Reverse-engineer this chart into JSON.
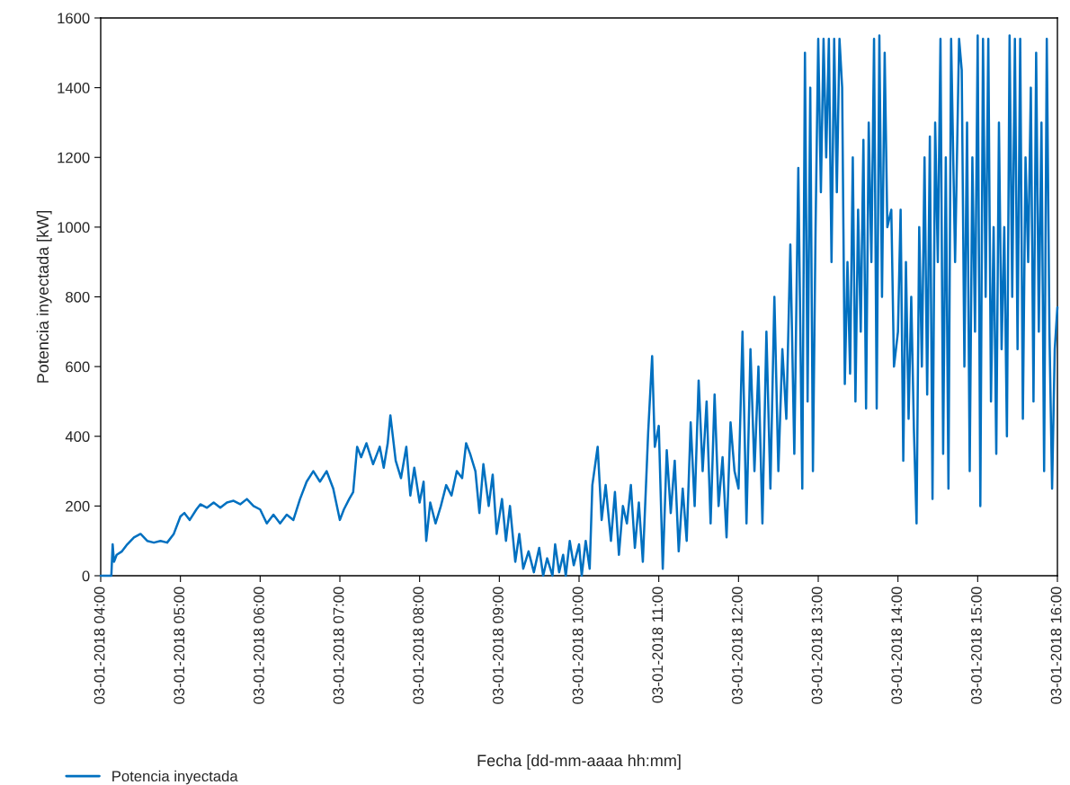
{
  "chart_data": {
    "type": "line",
    "xlabel": "Fecha [dd-mm-aaaa hh:mm]",
    "ylabel": "Potencia inyectada [kW]",
    "ylim": [
      0,
      1600
    ],
    "yticks": [
      0,
      200,
      400,
      600,
      800,
      1000,
      1200,
      1400,
      1600
    ],
    "xlim": [
      "2018-01-03T04:00",
      "2018-01-03T16:00"
    ],
    "xticks": [
      {
        "value": "2018-01-03T04:00",
        "label": "03-01-2018 04:00"
      },
      {
        "value": "2018-01-03T05:00",
        "label": "03-01-2018 05:00"
      },
      {
        "value": "2018-01-03T06:00",
        "label": "03-01-2018 06:00"
      },
      {
        "value": "2018-01-03T07:00",
        "label": "03-01-2018 07:00"
      },
      {
        "value": "2018-01-03T08:00",
        "label": "03-01-2018 08:00"
      },
      {
        "value": "2018-01-03T09:00",
        "label": "03-01-2018 09:00"
      },
      {
        "value": "2018-01-03T10:00",
        "label": "03-01-2018 10:00"
      },
      {
        "value": "2018-01-03T11:00",
        "label": "03-01-2018 11:00"
      },
      {
        "value": "2018-01-03T12:00",
        "label": "03-01-2018 12:00"
      },
      {
        "value": "2018-01-03T13:00",
        "label": "03-01-2018 13:00"
      },
      {
        "value": "2018-01-03T14:00",
        "label": "03-01-2018 14:00"
      },
      {
        "value": "2018-01-03T15:00",
        "label": "03-01-2018 15:00"
      },
      {
        "value": "2018-01-03T16:00",
        "label": "03-01-2018 16:00"
      }
    ],
    "grid": false,
    "legend": "bottom left",
    "marker": "none",
    "line_style": "solid",
    "series": [
      {
        "name": "Potencia inyectada",
        "color": "#0070c0",
        "x": [
          "2018-01-03T04:00",
          "2018-01-03T04:08",
          "2018-01-03T04:09",
          "2018-01-03T04:10",
          "2018-01-03T04:12",
          "2018-01-03T04:16",
          "2018-01-03T04:20",
          "2018-01-03T04:25",
          "2018-01-03T04:30",
          "2018-01-03T04:35",
          "2018-01-03T04:40",
          "2018-01-03T04:45",
          "2018-01-03T04:50",
          "2018-01-03T04:55",
          "2018-01-03T05:00",
          "2018-01-03T05:03",
          "2018-01-03T05:07",
          "2018-01-03T05:12",
          "2018-01-03T05:15",
          "2018-01-03T05:20",
          "2018-01-03T05:25",
          "2018-01-03T05:30",
          "2018-01-03T05:35",
          "2018-01-03T05:40",
          "2018-01-03T05:45",
          "2018-01-03T05:50",
          "2018-01-03T05:55",
          "2018-01-03T06:00",
          "2018-01-03T06:05",
          "2018-01-03T06:10",
          "2018-01-03T06:15",
          "2018-01-03T06:20",
          "2018-01-03T06:25",
          "2018-01-03T06:30",
          "2018-01-03T06:35",
          "2018-01-03T06:40",
          "2018-01-03T06:45",
          "2018-01-03T06:50",
          "2018-01-03T06:55",
          "2018-01-03T07:00",
          "2018-01-03T07:03",
          "2018-01-03T07:07",
          "2018-01-03T07:10",
          "2018-01-03T07:13",
          "2018-01-03T07:16",
          "2018-01-03T07:20",
          "2018-01-03T07:25",
          "2018-01-03T07:30",
          "2018-01-03T07:33",
          "2018-01-03T07:36",
          "2018-01-03T07:38",
          "2018-01-03T07:42",
          "2018-01-03T07:46",
          "2018-01-03T07:50",
          "2018-01-03T07:53",
          "2018-01-03T07:56",
          "2018-01-03T08:00",
          "2018-01-03T08:03",
          "2018-01-03T08:05",
          "2018-01-03T08:08",
          "2018-01-03T08:12",
          "2018-01-03T08:16",
          "2018-01-03T08:20",
          "2018-01-03T08:24",
          "2018-01-03T08:28",
          "2018-01-03T08:32",
          "2018-01-03T08:35",
          "2018-01-03T08:38",
          "2018-01-03T08:42",
          "2018-01-03T08:45",
          "2018-01-03T08:48",
          "2018-01-03T08:52",
          "2018-01-03T08:55",
          "2018-01-03T08:58",
          "2018-01-03T09:02",
          "2018-01-03T09:05",
          "2018-01-03T09:08",
          "2018-01-03T09:12",
          "2018-01-03T09:15",
          "2018-01-03T09:18",
          "2018-01-03T09:22",
          "2018-01-03T09:26",
          "2018-01-03T09:30",
          "2018-01-03T09:33",
          "2018-01-03T09:36",
          "2018-01-03T09:40",
          "2018-01-03T09:42",
          "2018-01-03T09:45",
          "2018-01-03T09:48",
          "2018-01-03T09:50",
          "2018-01-03T09:53",
          "2018-01-03T09:56",
          "2018-01-03T10:00",
          "2018-01-03T10:02",
          "2018-01-03T10:05",
          "2018-01-03T10:08",
          "2018-01-03T10:10",
          "2018-01-03T10:14",
          "2018-01-03T10:17",
          "2018-01-03T10:20",
          "2018-01-03T10:24",
          "2018-01-03T10:27",
          "2018-01-03T10:30",
          "2018-01-03T10:33",
          "2018-01-03T10:36",
          "2018-01-03T10:39",
          "2018-01-03T10:42",
          "2018-01-03T10:45",
          "2018-01-03T10:48",
          "2018-01-03T10:52",
          "2018-01-03T10:55",
          "2018-01-03T10:57",
          "2018-01-03T11:00",
          "2018-01-03T11:03",
          "2018-01-03T11:06",
          "2018-01-03T11:09",
          "2018-01-03T11:12",
          "2018-01-03T11:15",
          "2018-01-03T11:18",
          "2018-01-03T11:21",
          "2018-01-03T11:24",
          "2018-01-03T11:27",
          "2018-01-03T11:30",
          "2018-01-03T11:33",
          "2018-01-03T11:36",
          "2018-01-03T11:39",
          "2018-01-03T11:42",
          "2018-01-03T11:45",
          "2018-01-03T11:48",
          "2018-01-03T11:51",
          "2018-01-03T11:54",
          "2018-01-03T11:57",
          "2018-01-03T12:00",
          "2018-01-03T12:03",
          "2018-01-03T12:06",
          "2018-01-03T12:09",
          "2018-01-03T12:12",
          "2018-01-03T12:15",
          "2018-01-03T12:18",
          "2018-01-03T12:21",
          "2018-01-03T12:24",
          "2018-01-03T12:27",
          "2018-01-03T12:30",
          "2018-01-03T12:33",
          "2018-01-03T12:36",
          "2018-01-03T12:39",
          "2018-01-03T12:42",
          "2018-01-03T12:45",
          "2018-01-03T12:48",
          "2018-01-03T12:50",
          "2018-01-03T12:52",
          "2018-01-03T12:54",
          "2018-01-03T12:56",
          "2018-01-03T12:58",
          "2018-01-03T13:00",
          "2018-01-03T13:02",
          "2018-01-03T13:04",
          "2018-01-03T13:06",
          "2018-01-03T13:08",
          "2018-01-03T13:10",
          "2018-01-03T13:12",
          "2018-01-03T13:14",
          "2018-01-03T13:16",
          "2018-01-03T13:18",
          "2018-01-03T13:20",
          "2018-01-03T13:22",
          "2018-01-03T13:24",
          "2018-01-03T13:26",
          "2018-01-03T13:28",
          "2018-01-03T13:30",
          "2018-01-03T13:32",
          "2018-01-03T13:34",
          "2018-01-03T13:36",
          "2018-01-03T13:38",
          "2018-01-03T13:40",
          "2018-01-03T13:42",
          "2018-01-03T13:44",
          "2018-01-03T13:46",
          "2018-01-03T13:48",
          "2018-01-03T13:50",
          "2018-01-03T13:52",
          "2018-01-03T13:55",
          "2018-01-03T13:57",
          "2018-01-03T14:00",
          "2018-01-03T14:02",
          "2018-01-03T14:04",
          "2018-01-03T14:06",
          "2018-01-03T14:08",
          "2018-01-03T14:10",
          "2018-01-03T14:12",
          "2018-01-03T14:14",
          "2018-01-03T14:16",
          "2018-01-03T14:18",
          "2018-01-03T14:20",
          "2018-01-03T14:22",
          "2018-01-03T14:24",
          "2018-01-03T14:26",
          "2018-01-03T14:28",
          "2018-01-03T14:30",
          "2018-01-03T14:32",
          "2018-01-03T14:34",
          "2018-01-03T14:36",
          "2018-01-03T14:38",
          "2018-01-03T14:40",
          "2018-01-03T14:43",
          "2018-01-03T14:46",
          "2018-01-03T14:48",
          "2018-01-03T14:50",
          "2018-01-03T14:52",
          "2018-01-03T14:54",
          "2018-01-03T14:56",
          "2018-01-03T14:58",
          "2018-01-03T15:00",
          "2018-01-03T15:02",
          "2018-01-03T15:04",
          "2018-01-03T15:06",
          "2018-01-03T15:08",
          "2018-01-03T15:10",
          "2018-01-03T15:12",
          "2018-01-03T15:14",
          "2018-01-03T15:16",
          "2018-01-03T15:18",
          "2018-01-03T15:20",
          "2018-01-03T15:22",
          "2018-01-03T15:24",
          "2018-01-03T15:26",
          "2018-01-03T15:28",
          "2018-01-03T15:30",
          "2018-01-03T15:32",
          "2018-01-03T15:34",
          "2018-01-03T15:36",
          "2018-01-03T15:38",
          "2018-01-03T15:40",
          "2018-01-03T15:42",
          "2018-01-03T15:44",
          "2018-01-03T15:46",
          "2018-01-03T15:48",
          "2018-01-03T15:50",
          "2018-01-03T15:52",
          "2018-01-03T15:54",
          "2018-01-03T15:56",
          "2018-01-03T15:58",
          "2018-01-03T16:00"
        ],
        "values": [
          0,
          0,
          90,
          40,
          60,
          70,
          90,
          110,
          120,
          100,
          95,
          100,
          95,
          120,
          170,
          180,
          160,
          190,
          205,
          195,
          210,
          195,
          210,
          215,
          205,
          220,
          200,
          190,
          150,
          175,
          150,
          175,
          160,
          220,
          270,
          300,
          270,
          300,
          250,
          160,
          190,
          220,
          240,
          370,
          340,
          380,
          320,
          370,
          310,
          380,
          460,
          330,
          280,
          370,
          230,
          310,
          210,
          270,
          100,
          210,
          150,
          200,
          260,
          230,
          300,
          280,
          380,
          350,
          300,
          180,
          320,
          200,
          290,
          120,
          220,
          100,
          200,
          40,
          120,
          20,
          70,
          10,
          80,
          0,
          50,
          0,
          90,
          10,
          60,
          0,
          100,
          30,
          90,
          0,
          100,
          20,
          260,
          370,
          160,
          260,
          100,
          240,
          60,
          200,
          150,
          260,
          80,
          210,
          40,
          410,
          630,
          370,
          430,
          20,
          360,
          180,
          330,
          70,
          250,
          100,
          440,
          200,
          560,
          300,
          500,
          150,
          520,
          200,
          340,
          110,
          440,
          300,
          250,
          700,
          150,
          650,
          300,
          600,
          150,
          700,
          250,
          800,
          300,
          650,
          450,
          950,
          350,
          1170,
          250,
          1500,
          500,
          1400,
          300,
          1000,
          1540,
          1100,
          1540,
          1200,
          1540,
          900,
          1540,
          1100,
          1540,
          1400,
          550,
          900,
          580,
          1200,
          500,
          1050,
          700,
          1250,
          480,
          1300,
          900,
          1540,
          480,
          1550,
          800,
          1500,
          1000,
          1050,
          600,
          700,
          1050,
          330,
          900,
          450,
          800,
          420,
          150,
          1000,
          600,
          1200,
          520,
          1260,
          220,
          1300,
          900,
          1540,
          350,
          1200,
          250,
          1540,
          900,
          1540,
          1450,
          600,
          1300,
          300,
          1200,
          700,
          1550,
          200,
          1540,
          800,
          1540,
          500,
          1000,
          350,
          1300,
          650,
          1000,
          400,
          1550,
          800,
          1540,
          650,
          1540,
          450,
          1200,
          900,
          1400,
          500,
          1500,
          700,
          1300,
          300,
          1540,
          700,
          250,
          650,
          770
        ]
      }
    ]
  }
}
